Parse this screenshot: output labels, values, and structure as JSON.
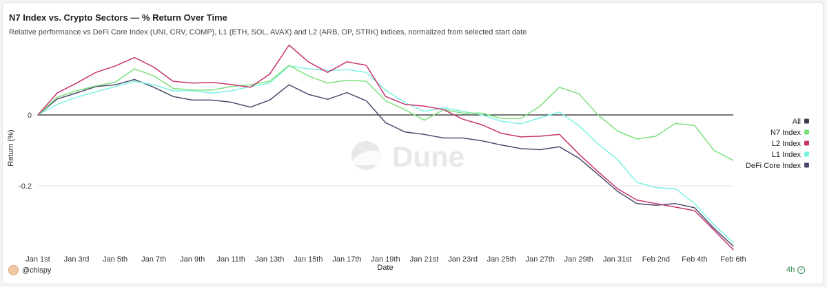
{
  "header": {
    "title": "N7 Index vs. Crypto Sectors — % Return Over Time",
    "subtitle": "Relative performance vs DeFi Core Index (UNI, CRV, COMP), L1 (ETH, SOL, AVAX) and L2 (ARB, OP, STRK) indices, normalized from selected start date"
  },
  "footer": {
    "username": "@chispy",
    "refresh_label": "4h",
    "check_icon": "check-circle-icon"
  },
  "watermark": "Dune",
  "legend": {
    "all_label": "All",
    "all_color": "#3c3c4a"
  },
  "chart_data": {
    "type": "line",
    "title": "N7 Index vs. Crypto Sectors — % Return Over Time",
    "xlabel": "Date",
    "ylabel": "Return (%)",
    "ylim": [
      -0.38,
      0.2
    ],
    "yticks": [
      0,
      -0.2
    ],
    "ytick_labels": [
      "0",
      "-0.2"
    ],
    "grid": "horizontal",
    "legend_position": "right",
    "x": [
      "Jan 1st",
      "Jan 2nd",
      "Jan 3rd",
      "Jan 4th",
      "Jan 5th",
      "Jan 6th",
      "Jan 7th",
      "Jan 8th",
      "Jan 9th",
      "Jan 10th",
      "Jan 11th",
      "Jan 12th",
      "Jan 13th",
      "Jan 14th",
      "Jan 15th",
      "Jan 16th",
      "Jan 17th",
      "Jan 18th",
      "Jan 19th",
      "Jan 20th",
      "Jan 21st",
      "Jan 22nd",
      "Jan 23rd",
      "Jan 24th",
      "Jan 25th",
      "Jan 26th",
      "Jan 27th",
      "Jan 28th",
      "Jan 29th",
      "Jan 30th",
      "Jan 31st",
      "Feb 1st",
      "Feb 2nd",
      "Feb 3rd",
      "Feb 4th",
      "Feb 5th",
      "Feb 6th"
    ],
    "xtick_labels": [
      "Jan 1st",
      "Jan 3rd",
      "Jan 5th",
      "Jan 7th",
      "Jan 9th",
      "Jan 11th",
      "Jan 13th",
      "Jan 15th",
      "Jan 17th",
      "Jan 19th",
      "Jan 21st",
      "Jan 23rd",
      "Jan 25th",
      "Jan 27th",
      "Jan 29th",
      "Jan 31st",
      "Feb 2nd",
      "Feb 4th",
      "Feb 6th"
    ],
    "series": [
      {
        "name": "N7 Index",
        "color": "#7be07b",
        "values": [
          0,
          0.05,
          0.068,
          0.082,
          0.092,
          0.13,
          0.11,
          0.075,
          0.07,
          0.07,
          0.08,
          0.085,
          0.095,
          0.14,
          0.11,
          0.09,
          0.098,
          0.095,
          0.04,
          0.015,
          -0.015,
          0.015,
          0.005,
          0.005,
          -0.01,
          -0.01,
          0.025,
          0.078,
          0.06,
          0.0,
          -0.045,
          -0.068,
          -0.06,
          -0.024,
          -0.03,
          -0.1,
          -0.128
        ]
      },
      {
        "name": "L2 Index",
        "color": "#c8336e",
        "values": [
          0,
          0.062,
          0.09,
          0.12,
          0.138,
          0.162,
          0.135,
          0.095,
          0.09,
          0.092,
          0.086,
          0.078,
          0.115,
          0.197,
          0.15,
          0.12,
          0.15,
          0.14,
          0.052,
          0.03,
          0.025,
          0.015,
          -0.012,
          -0.028,
          -0.052,
          -0.062,
          -0.06,
          -0.055,
          -0.11,
          -0.16,
          -0.208,
          -0.24,
          -0.25,
          -0.26,
          -0.27,
          -0.325,
          -0.38
        ]
      },
      {
        "name": "L1 Index",
        "color": "#7af2e2",
        "values": [
          0,
          0.03,
          0.05,
          0.065,
          0.08,
          0.095,
          0.085,
          0.068,
          0.068,
          0.062,
          0.068,
          0.08,
          0.09,
          0.138,
          0.13,
          0.125,
          0.128,
          0.12,
          0.07,
          0.035,
          0.01,
          0.02,
          0.01,
          0.0,
          -0.018,
          -0.025,
          -0.008,
          0.008,
          -0.03,
          -0.082,
          -0.125,
          -0.19,
          -0.205,
          -0.208,
          -0.25,
          -0.31,
          -0.36
        ]
      },
      {
        "name": "DeFi Core Index",
        "color": "#4a4a6e",
        "values": [
          0,
          0.045,
          0.062,
          0.08,
          0.085,
          0.1,
          0.078,
          0.052,
          0.042,
          0.042,
          0.036,
          0.022,
          0.042,
          0.085,
          0.058,
          0.044,
          0.063,
          0.04,
          -0.022,
          -0.048,
          -0.055,
          -0.065,
          -0.065,
          -0.073,
          -0.085,
          -0.095,
          -0.098,
          -0.09,
          -0.122,
          -0.168,
          -0.215,
          -0.25,
          -0.255,
          -0.25,
          -0.262,
          -0.32,
          -0.37
        ]
      }
    ]
  }
}
